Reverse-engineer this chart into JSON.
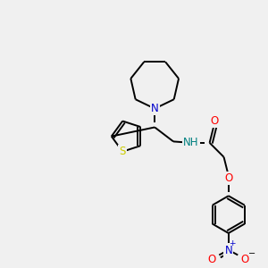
{
  "background_color": "#f0f0f0",
  "bond_color": "#000000",
  "N_color": "#0000cc",
  "O_color": "#ff0000",
  "S_color": "#cccc00",
  "NH_color": "#008080",
  "figsize": [
    3.0,
    3.0
  ],
  "dpi": 100,
  "xlim": [
    0,
    10
  ],
  "ylim": [
    0,
    10
  ],
  "lw": 1.4,
  "fontsize": 8.5
}
